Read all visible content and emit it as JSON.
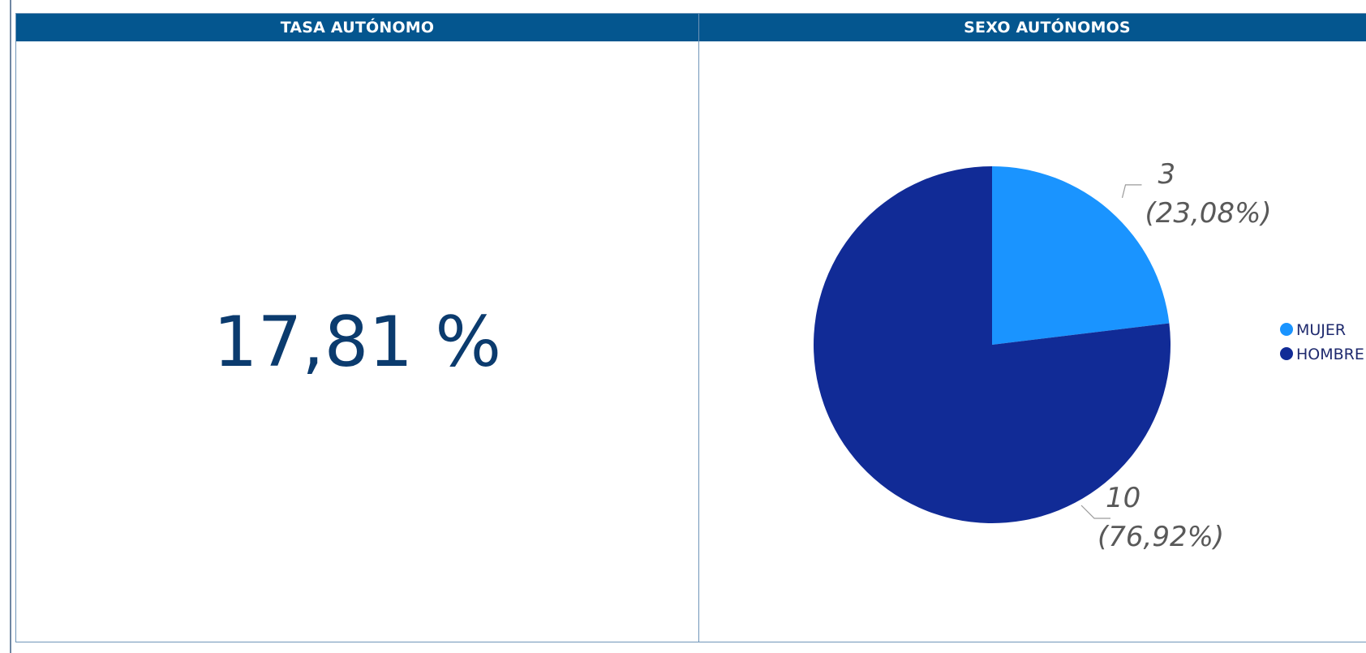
{
  "panels": {
    "tasa": {
      "title": "TASA AUTÓNOMO",
      "value": "17,81 %"
    },
    "sexo": {
      "title": "SEXO AUTÓNOMOS"
    }
  },
  "chart_data": {
    "type": "pie",
    "title": "SEXO AUTÓNOMOS",
    "slices": [
      {
        "name": "MUJER",
        "value": 3,
        "percent": 23.08,
        "label_value": "3",
        "label_percent": "(23,08%)",
        "color": "#1a94ff"
      },
      {
        "name": "HOMBRE",
        "value": 10,
        "percent": 76.92,
        "label_value": "10",
        "label_percent": "(76,92%)",
        "color": "#112b96"
      }
    ],
    "legend": {
      "position": "right",
      "items": [
        "MUJER",
        "HOMBRE"
      ]
    }
  },
  "colors": {
    "header_bg": "#04568f",
    "kpi_text": "#0b3b6e",
    "label_text": "#595959"
  }
}
